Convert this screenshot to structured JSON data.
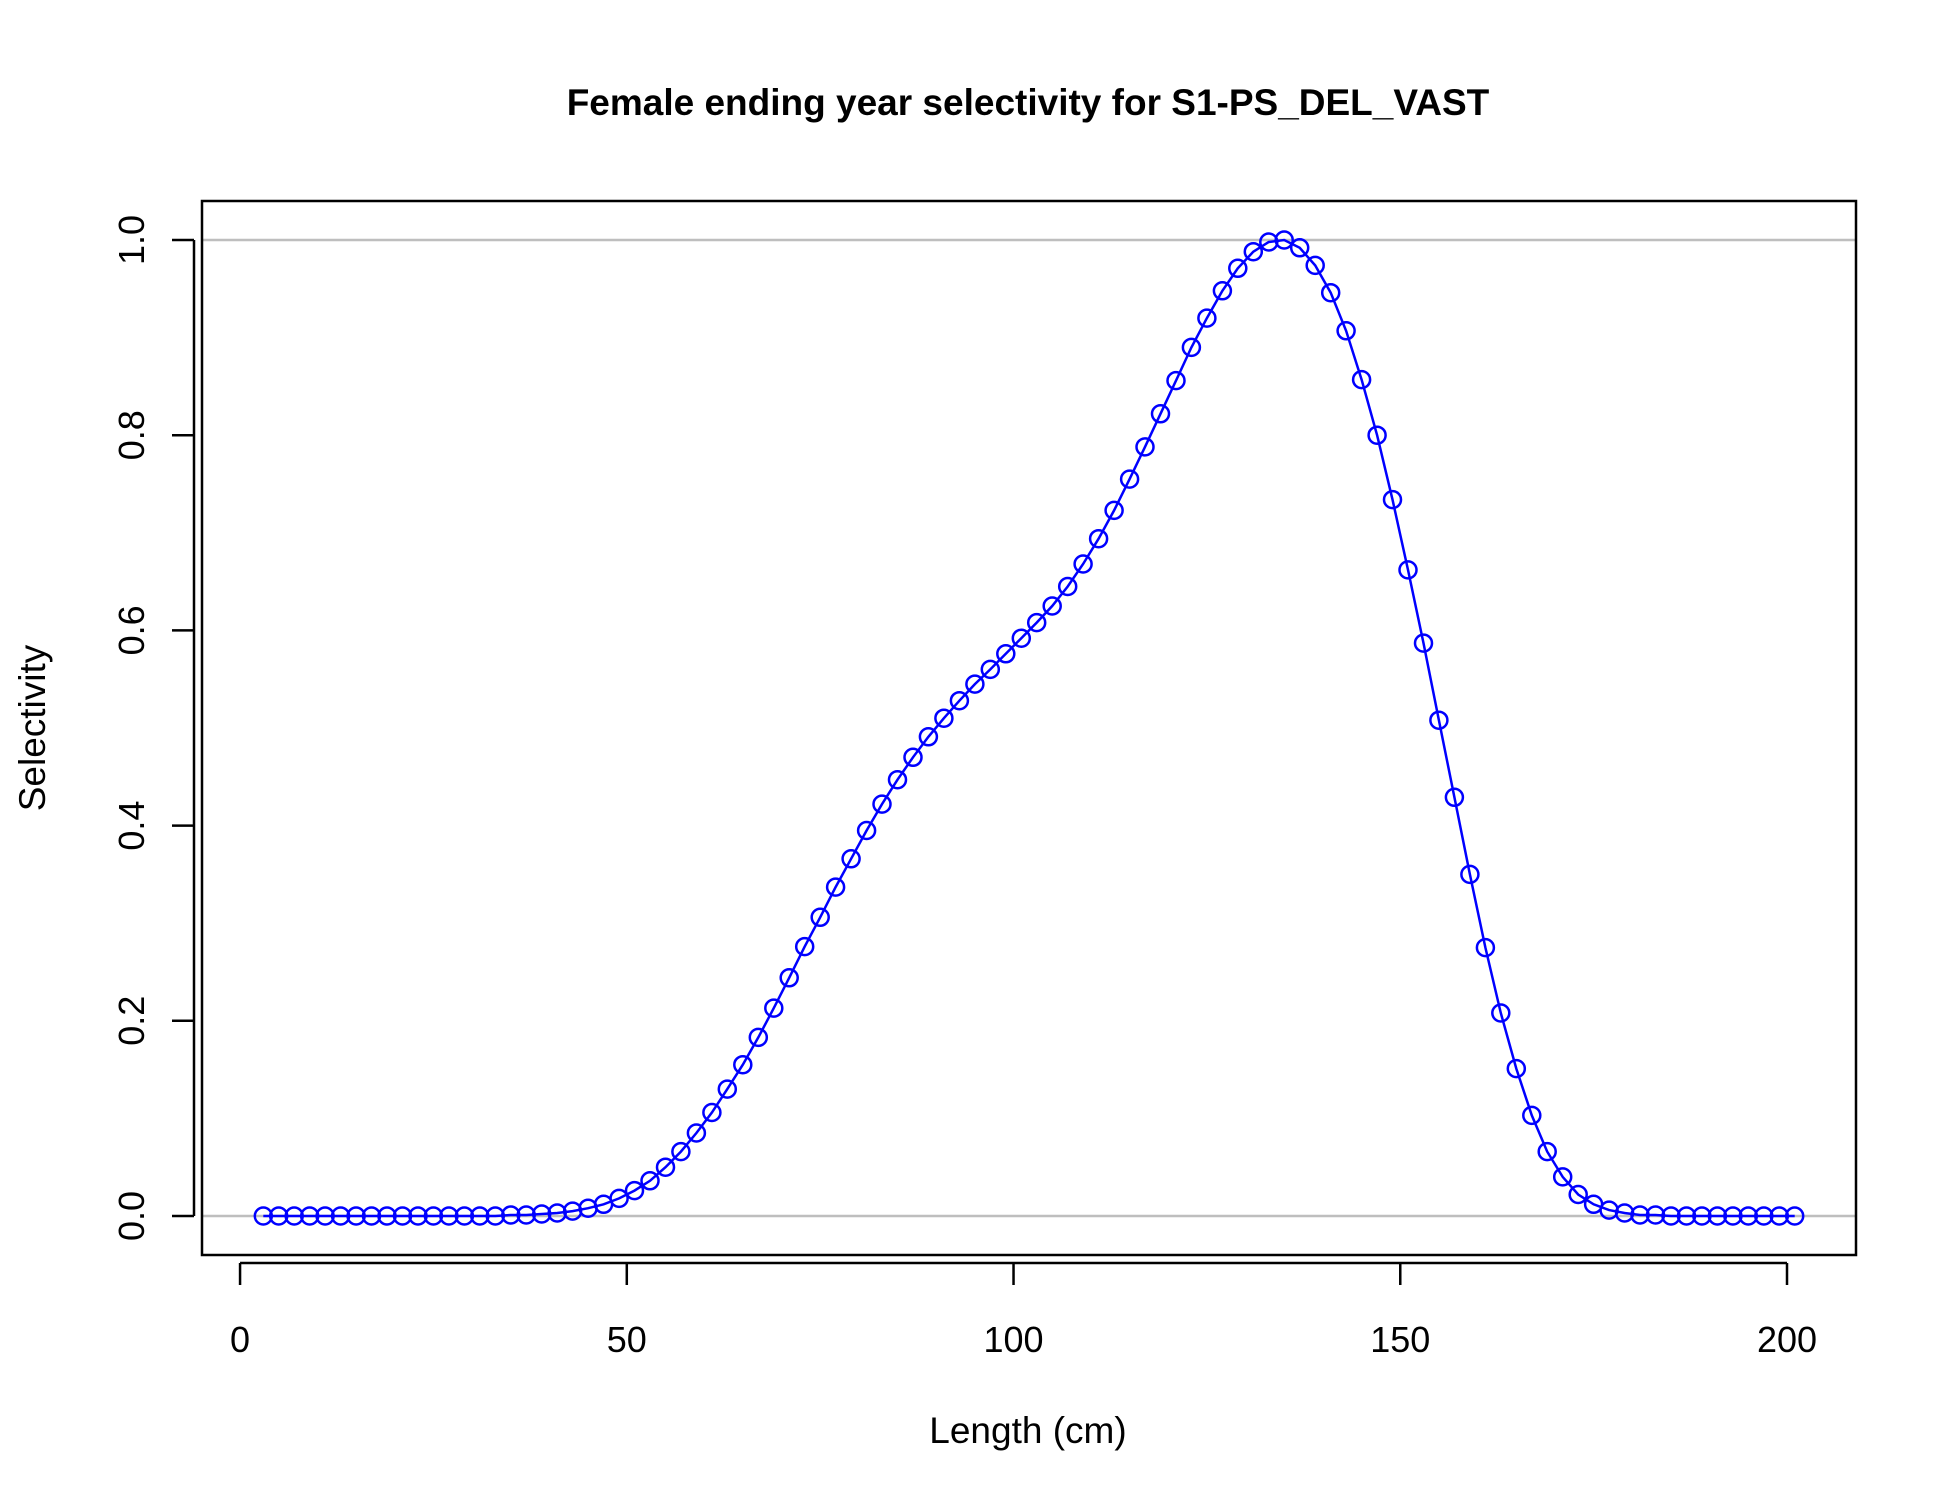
{
  "chart_data": {
    "type": "line",
    "title": "Female ending year selectivity for S1-PS_DEL_VAST",
    "xlabel": "Length (cm)",
    "ylabel": "Selectivity",
    "xlim": [
      3,
      201
    ],
    "ylim": [
      0,
      1
    ],
    "x_ticks": [
      "0",
      "50",
      "100",
      "150",
      "200"
    ],
    "y_ticks": [
      "0.0",
      "0.2",
      "0.4",
      "0.6",
      "0.8",
      "1.0"
    ],
    "reference_lines": [
      0,
      1
    ],
    "grid": false,
    "legend": "none",
    "colors": {
      "series": "#0000ff",
      "reference": "#bebebe",
      "frame": "#000000"
    },
    "marker": "open-circle",
    "series": [
      {
        "x": [
          3,
          5,
          7,
          9,
          11,
          13,
          15,
          17,
          19,
          21,
          23,
          25,
          27,
          29,
          31,
          33,
          35,
          37,
          39,
          41,
          43,
          45,
          47,
          49,
          51,
          53,
          55,
          57,
          59,
          61,
          63,
          65,
          67,
          69,
          71,
          73,
          75,
          77,
          79,
          81,
          83,
          85,
          87,
          89,
          91,
          93,
          95,
          97,
          99,
          101,
          103,
          105,
          107,
          109,
          111,
          113,
          115,
          117,
          119,
          121,
          123,
          125,
          127,
          129,
          131,
          133,
          135,
          137,
          139,
          141,
          143,
          145,
          147,
          149,
          151,
          153,
          155,
          157,
          159,
          161,
          163,
          165,
          167,
          169,
          171,
          173,
          175,
          177,
          179,
          181,
          183,
          185,
          187,
          189,
          191,
          193,
          195,
          197,
          199,
          201
        ],
        "y": [
          0,
          0,
          0,
          0,
          0,
          0,
          0,
          0,
          0,
          0,
          0,
          0,
          0,
          0,
          0,
          0,
          0.001,
          0.001,
          0.002,
          0.003,
          0.005,
          0.008,
          0.012,
          0.018,
          0.026,
          0.036,
          0.05,
          0.066,
          0.085,
          0.106,
          0.13,
          0.155,
          0.183,
          0.213,
          0.244,
          0.276,
          0.306,
          0.337,
          0.366,
          0.395,
          0.422,
          0.447,
          0.47,
          0.491,
          0.51,
          0.528,
          0.545,
          0.56,
          0.576,
          0.592,
          0.608,
          0.625,
          0.645,
          0.668,
          0.694,
          0.723,
          0.755,
          0.788,
          0.822,
          0.856,
          0.89,
          0.92,
          0.948,
          0.971,
          0.988,
          0.998,
          1.0,
          0.992,
          0.974,
          0.946,
          0.907,
          0.857,
          0.8,
          0.734,
          0.662,
          0.587,
          0.508,
          0.429,
          0.35,
          0.275,
          0.208,
          0.151,
          0.103,
          0.066,
          0.04,
          0.022,
          0.012,
          0.006,
          0.003,
          0.001,
          0.001,
          0,
          0,
          0,
          0,
          0,
          0,
          0,
          0,
          0
        ]
      }
    ]
  }
}
